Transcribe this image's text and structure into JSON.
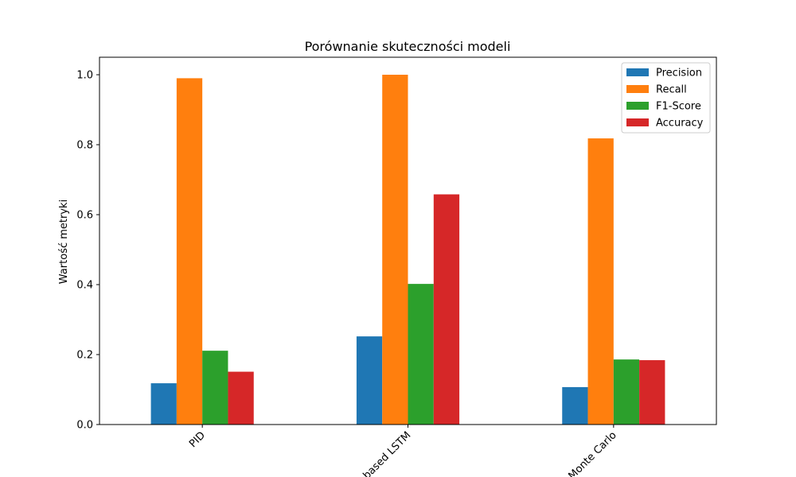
{
  "chart_data": {
    "type": "bar",
    "title": "Porównanie skuteczności modeli",
    "xlabel": "",
    "ylabel": "Wartość metryki",
    "categories": [
      "PID",
      "Rule-based LSTM",
      "Monte Carlo"
    ],
    "series": [
      {
        "name": "Precision",
        "color": "#1f77b4",
        "values": [
          0.118,
          0.252,
          0.107
        ]
      },
      {
        "name": "Recall",
        "color": "#ff7f0e",
        "values": [
          0.99,
          1.0,
          0.818
        ]
      },
      {
        "name": "F1-Score",
        "color": "#2ca02c",
        "values": [
          0.211,
          0.402,
          0.186
        ]
      },
      {
        "name": "Accuracy",
        "color": "#d62728",
        "values": [
          0.151,
          0.658,
          0.184
        ]
      }
    ],
    "ylim": [
      0,
      1.05
    ],
    "yticks": [
      "0.0",
      "0.2",
      "0.4",
      "0.6",
      "0.8",
      "1.0"
    ],
    "xtick_rotation": 45,
    "grid": false,
    "legend_position": "top-right"
  }
}
